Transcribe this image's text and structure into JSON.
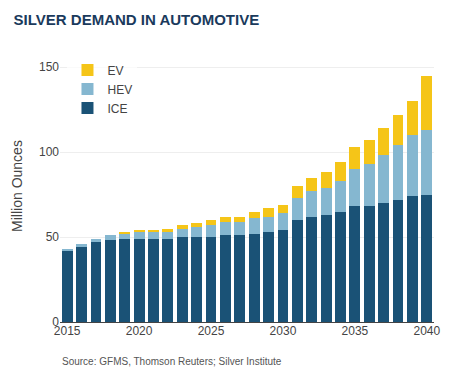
{
  "chart_data": {
    "type": "bar",
    "title": "SILVER DEMAND IN AUTOMOTIVE",
    "ylabel": "Million Ounces",
    "annotations": [
      "Source: GFMS, Thomson Reuters; Silver Institute"
    ],
    "categories": [
      "2015",
      null,
      null,
      null,
      null,
      "2020",
      null,
      null,
      null,
      null,
      "2025",
      null,
      null,
      null,
      null,
      "2030",
      null,
      null,
      null,
      null,
      "2035",
      null,
      null,
      null,
      null,
      "2040"
    ],
    "series": [
      {
        "name": "ICE",
        "color": "#1a5276",
        "values": [
          42,
          44,
          47,
          48,
          49,
          49,
          49,
          49,
          50,
          50,
          50,
          51,
          51,
          52,
          53,
          54,
          60,
          62,
          63,
          65,
          68,
          68,
          70,
          72,
          74,
          75
        ]
      },
      {
        "name": "HEV",
        "color": "#85b7d0",
        "values": [
          1,
          2,
          2,
          3,
          3,
          4,
          4,
          4,
          5,
          6,
          7,
          8,
          8,
          9,
          9,
          10,
          13,
          15,
          16,
          18,
          22,
          25,
          28,
          32,
          36,
          38
        ]
      },
      {
        "name": "EV",
        "color": "#f5c518",
        "values": [
          0,
          0,
          0,
          0,
          1,
          1,
          1,
          2,
          2,
          2,
          3,
          3,
          3,
          4,
          5,
          5,
          7,
          8,
          9,
          11,
          13,
          14,
          16,
          18,
          20,
          32
        ]
      }
    ],
    "stacked": true,
    "ylim": [
      0,
      160
    ],
    "yticks": [
      0,
      50,
      100,
      150
    ],
    "grid": true,
    "legend": "upper left"
  }
}
